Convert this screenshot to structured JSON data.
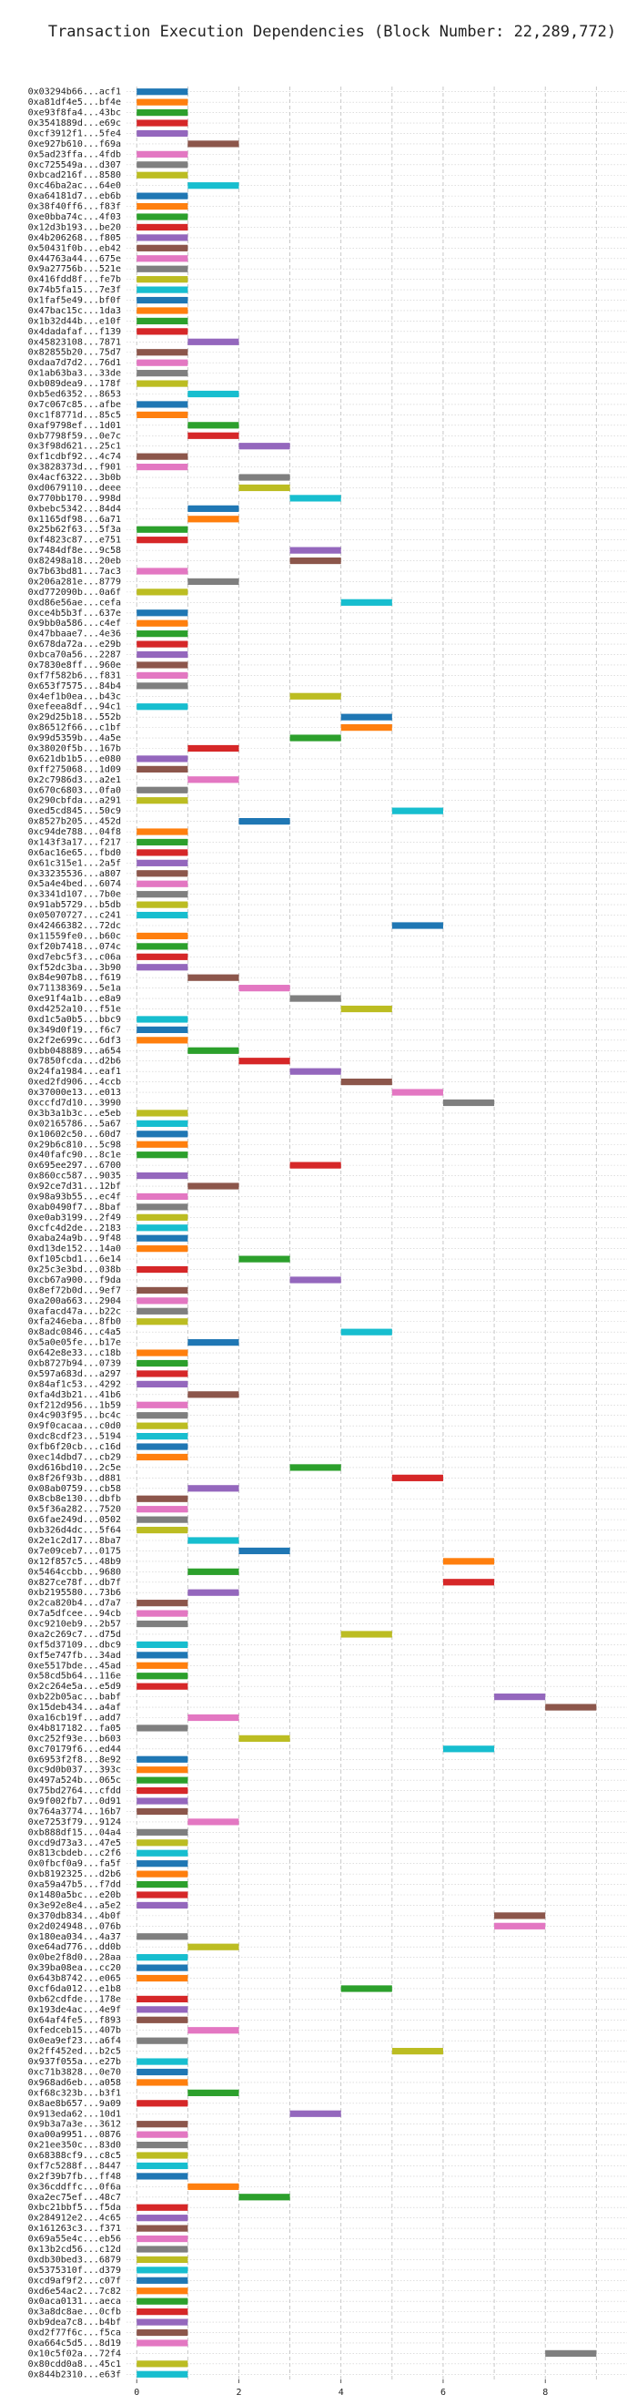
{
  "chart_data": {
    "type": "gantt",
    "title": "Transaction Execution Dependencies (Block Number: 22,289,772)",
    "colors": [
      "#1f77b4",
      "#ff7f0e",
      "#2ca02c",
      "#d62728",
      "#9467bd",
      "#8c564b",
      "#e377c2",
      "#7f7f7f",
      "#bcbd22",
      "#17becf"
    ],
    "xlim": [
      -0.2,
      9.6
    ],
    "xticks": [
      0,
      2,
      4,
      6,
      8
    ],
    "xminor": [
      1,
      3,
      5,
      7,
      9
    ],
    "grid": true,
    "categories": [
      "0x03294b66...acf1",
      "0xa81df4e5...bf4e",
      "0xe93f8fa4...43bc",
      "0x3541889d...e69c",
      "0xcf3912f1...5fe4",
      "0xe927b610...f69a",
      "0x5ad23ffa...4fdb",
      "0xc725549a...d307",
      "0xbcad216f...8580",
      "0xc46ba2ac...64e0",
      "0xa64181d7...eb6b",
      "0x38f40ff6...f83f",
      "0xe0bba74c...4f03",
      "0x12d3b193...be20",
      "0x4b206268...f805",
      "0x50431f0b...eb42",
      "0x44763a44...675e",
      "0x9a27756b...521e",
      "0x416fdd8f...fe7b",
      "0x74b5fa15...7e3f",
      "0x1faf5e49...bf0f",
      "0x47bac15c...1da3",
      "0x1b32d44b...e10f",
      "0x4dadafaf...f139",
      "0x45823108...7871",
      "0x82855b20...75d7",
      "0xdaa7d7d2...76d1",
      "0x1ab63ba3...33de",
      "0xb089dea9...178f",
      "0xb5ed6352...8653",
      "0x7c067c85...afbe",
      "0xc1f8771d...85c5",
      "0xaf9798ef...1d01",
      "0xb7798f59...0e7c",
      "0x3f98d621...25c1",
      "0xf1cdbf92...4c74",
      "0x3828373d...f901",
      "0x4acf6322...3b0b",
      "0xd0679110...deee",
      "0x770bb170...998d",
      "0xbebc5342...84d4",
      "0x1165df98...6a71",
      "0x25b62f63...5f3a",
      "0xf4823c87...e751",
      "0x7484df8e...9c58",
      "0x82498a18...20eb",
      "0x7b63bd81...7ac3",
      "0x206a281e...8779",
      "0xd772090b...0a6f",
      "0xd86e56ae...cefa",
      "0xce4b5b3f...637e",
      "0x9bb0a586...c4ef",
      "0x47bbaae7...4e36",
      "0x678da72a...e29b",
      "0xbca70a56...2287",
      "0x7830e8ff...960e",
      "0xf7f582b6...f831",
      "0x653f7575...84b4",
      "0x4ef1b0ea...b43c",
      "0xefeea8df...94c1",
      "0x29d25b18...552b",
      "0x86512f66...c1bf",
      "0x99d5359b...4a5e",
      "0x38020f5b...167b",
      "0x621db1b5...e080",
      "0xff275068...1d09",
      "0x2c7986d3...a2e1",
      "0x670c6803...0fa0",
      "0x290cbfda...a291",
      "0xed5cd845...50c9",
      "0x8527b205...452d",
      "0xc94de788...04f8",
      "0x143f3a17...f217",
      "0x6ac16e65...fbd0",
      "0x61c315e1...2a5f",
      "0x33235536...a807",
      "0x5a4e4bed...6074",
      "0x3341d107...7b0e",
      "0x91ab5729...b5db",
      "0x05070727...c241",
      "0x42466382...72dc",
      "0x11559fe0...b60c",
      "0xf20b7418...074c",
      "0xd7ebc5f3...c06a",
      "0xf52dc3ba...3b90",
      "0x84e907b8...f619",
      "0x71138369...5e1a",
      "0xe91f4a1b...e8a9",
      "0xd4252a10...f51e",
      "0xd1c5a0b5...bbc9",
      "0x349d0f19...f6c7",
      "0x2f2e699c...6df3",
      "0xbb048889...a654",
      "0x7850fcda...d2b6",
      "0x24fa1984...eaf1",
      "0xed2fd906...4ccb",
      "0x37000e13...e013",
      "0xccfd7d10...3990",
      "0x3b3a1b3c...e5eb",
      "0x02165786...5a67",
      "0x10602c50...60d7",
      "0x29b6c810...5c98",
      "0x40fafc90...8c1e",
      "0x695ee297...6700",
      "0x860cc587...9035",
      "0x92ce7d31...12bf",
      "0x98a93b55...ec4f",
      "0xab0490f7...8baf",
      "0xe0ab3199...2f49",
      "0xcfc4d2de...2183",
      "0xaba24a9b...9f48",
      "0xd13de152...14a0",
      "0xf105cbd1...6e14",
      "0x25c3e3bd...038b",
      "0xcb67a900...f9da",
      "0x8ef72b0d...9ef7",
      "0xa200a663...2904",
      "0xafacd47a...b22c",
      "0xfa246eba...8fb0",
      "0x8adc0846...c4a5",
      "0x5a0e05fe...b17e",
      "0x642e8e33...c18b",
      "0xb8727b94...0739",
      "0x597a683d...a297",
      "0x84af1c53...4292",
      "0xfa4d3b21...41b6",
      "0xf212d956...1b59",
      "0x4c903f95...bc4c",
      "0x9f0cacaa...c0d0",
      "0xdc8cdf23...5194",
      "0xfb6f20cb...c16d",
      "0xec14dbd7...cb29",
      "0xd616bd10...2c5e",
      "0x8f26f93b...d881",
      "0x08ab0759...cb58",
      "0x8cb8e130...dbfb",
      "0x5f36a282...7520",
      "0x6fae249d...0502",
      "0xb326d4dc...5f64",
      "0x2e1c2d17...8ba7",
      "0x7e09ceb7...0175",
      "0x12f857c5...48b9",
      "0x5464ccbb...9680",
      "0x827ce78f...db7f",
      "0xb2195580...73b6",
      "0x2ca820b4...d7a7",
      "0x7a5dfcee...94cb",
      "0xc9210eb9...2b57",
      "0xa2c269c7...d75d",
      "0xf5d37109...dbc9",
      "0xf5e747fb...34ad",
      "0xe5517bde...45ad",
      "0x58cd5b64...116e",
      "0x2c264e5a...e5d9",
      "0xb22b05ac...babf",
      "0x15deb434...a4af",
      "0xa16cb19f...add7",
      "0x4b817182...fa05",
      "0xc252f93e...b603",
      "0xc70179f6...ed44",
      "0x6953f2f8...8e92",
      "0xc9d0b037...393c",
      "0x497a524b...065c",
      "0x75bd2764...cfdd",
      "0x9f002fb7...0d91",
      "0x764a3774...16b7",
      "0xe7253f79...9124",
      "0xb888df15...04a4",
      "0xcd9d73a3...47e5",
      "0x813cbdeb...c2f6",
      "0x0fbcf0a9...fa5f",
      "0xb8192325...d2b6",
      "0xa59a47b5...f7dd",
      "0x1480a5bc...e20b",
      "0x3e92e8e4...a5e2",
      "0x370db834...4b0f",
      "0x2d024948...076b",
      "0x180ea034...4a37",
      "0xe64ad776...dd0b",
      "0x0be2f8d0...28aa",
      "0x39ba08ea...cc20",
      "0x643b8742...e065",
      "0xcf6da012...e1b8",
      "0xb62cdfde...178e",
      "0x193de4ac...4e9f",
      "0x64af4fe5...f893",
      "0xfedceb15...407b",
      "0x0ea9ef23...a6f4",
      "0x2ff452ed...b2c5",
      "0x937f055a...e27b",
      "0xc71b3828...0e70",
      "0x968ad6eb...a058",
      "0xf68c323b...b3f1",
      "0x8ae8b657...9a09",
      "0x913eda62...10d1",
      "0x9b3a7a3e...3612",
      "0xa00a9951...0876",
      "0x21ee350c...83d0",
      "0x68388cf9...c8c5",
      "0xf7c5288f...8447",
      "0x2f39b7fb...ff48",
      "0x36cddffc...0f6a",
      "0xa2ec75ef...48c7",
      "0xbc21bbf5...f5da",
      "0x284912e2...4c65",
      "0x161263c3...f371",
      "0x69a55e4c...eb56",
      "0x13b2cd56...c12d",
      "0xdb30bed3...6879",
      "0x5375310f...d379",
      "0xcd9af9f2...c07f",
      "0xd6e54ac2...7c82",
      "0x0aca0131...aeca",
      "0x3a8dc8ae...0cfb",
      "0xb9dea7c8...b4bf",
      "0xd2f77f6c...f5ca",
      "0xa664c5d5...8d19",
      "0x10c5f02a...72f4",
      "0x80cdd0a8...45c1",
      "0x844b2310...e63f"
    ],
    "start": [
      0,
      0,
      0,
      0,
      0,
      1,
      0,
      0,
      0,
      1,
      0,
      0,
      0,
      0,
      0,
      0,
      0,
      0,
      0,
      0,
      0,
      0,
      0,
      0,
      1,
      0,
      0,
      0,
      0,
      1,
      0,
      0,
      1,
      1,
      2,
      0,
      0,
      2,
      2,
      3,
      1,
      1,
      0,
      0,
      3,
      3,
      0,
      1,
      0,
      4,
      0,
      0,
      0,
      0,
      0,
      0,
      0,
      0,
      3,
      0,
      4,
      4,
      3,
      1,
      0,
      0,
      1,
      0,
      0,
      5,
      2,
      0,
      0,
      0,
      0,
      0,
      0,
      0,
      0,
      0,
      5,
      0,
      0,
      0,
      0,
      1,
      2,
      3,
      4,
      0,
      0,
      0,
      1,
      2,
      3,
      4,
      5,
      6,
      0,
      0,
      0,
      0,
      0,
      3,
      0,
      1,
      0,
      0,
      0,
      0,
      0,
      0,
      2,
      0,
      3,
      0,
      0,
      0,
      0,
      4,
      1,
      0,
      0,
      0,
      0,
      1,
      0,
      0,
      0,
      0,
      0,
      0,
      3,
      5,
      1,
      0,
      0,
      0,
      0,
      1,
      2,
      6,
      1,
      6,
      1,
      0,
      0,
      0,
      4,
      0,
      0,
      0,
      0,
      0,
      7,
      8,
      1,
      0,
      2,
      6,
      0,
      0,
      0,
      0,
      0,
      0,
      1,
      0,
      0,
      0,
      0,
      0,
      0,
      0,
      0,
      7,
      7,
      0,
      1,
      0,
      0,
      0,
      4,
      0,
      0,
      0,
      1,
      0,
      5,
      0,
      0,
      0,
      1,
      0,
      3,
      0,
      0,
      0,
      0,
      0,
      0,
      1,
      2,
      0,
      0,
      0,
      0,
      0,
      0,
      0,
      0,
      0,
      0,
      0,
      0,
      0,
      0,
      8,
      0,
      0
    ],
    "end": [
      1,
      1,
      1,
      1,
      1,
      2,
      1,
      1,
      1,
      2,
      1,
      1,
      1,
      1,
      1,
      1,
      1,
      1,
      1,
      1,
      1,
      1,
      1,
      1,
      2,
      1,
      1,
      1,
      1,
      2,
      1,
      1,
      2,
      2,
      3,
      1,
      1,
      3,
      3,
      4,
      2,
      2,
      1,
      1,
      4,
      4,
      1,
      2,
      1,
      5,
      1,
      1,
      1,
      1,
      1,
      1,
      1,
      1,
      4,
      1,
      5,
      5,
      4,
      2,
      1,
      1,
      2,
      1,
      1,
      6,
      3,
      1,
      1,
      1,
      1,
      1,
      1,
      1,
      1,
      1,
      6,
      1,
      1,
      1,
      1,
      2,
      3,
      4,
      5,
      1,
      1,
      1,
      2,
      3,
      4,
      5,
      6,
      7,
      1,
      1,
      1,
      1,
      1,
      4,
      1,
      2,
      1,
      1,
      1,
      1,
      1,
      1,
      3,
      1,
      4,
      1,
      1,
      1,
      1,
      5,
      2,
      1,
      1,
      1,
      1,
      2,
      1,
      1,
      1,
      1,
      1,
      1,
      4,
      6,
      2,
      1,
      1,
      1,
      1,
      2,
      3,
      7,
      2,
      7,
      2,
      1,
      1,
      1,
      5,
      1,
      1,
      1,
      1,
      1,
      8,
      9,
      2,
      1,
      3,
      7,
      1,
      1,
      1,
      1,
      1,
      1,
      2,
      1,
      1,
      1,
      1,
      1,
      1,
      1,
      1,
      8,
      8,
      1,
      2,
      1,
      1,
      1,
      5,
      1,
      1,
      1,
      2,
      1,
      6,
      1,
      1,
      1,
      2,
      1,
      4,
      1,
      1,
      1,
      1,
      1,
      1,
      2,
      3,
      1,
      1,
      1,
      1,
      1,
      1,
      1,
      1,
      1,
      1,
      1,
      1,
      1,
      1,
      9,
      1,
      1
    ]
  }
}
